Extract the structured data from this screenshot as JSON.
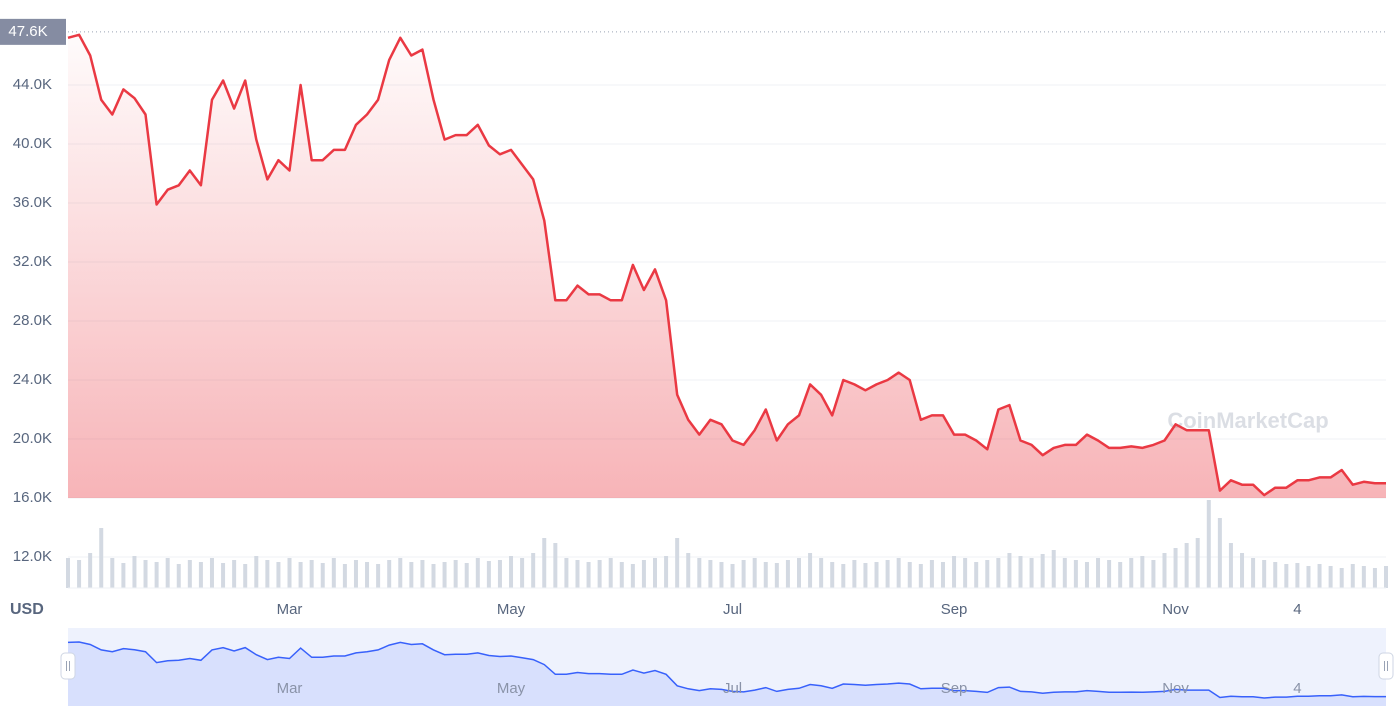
{
  "chart_data": {
    "type": "line",
    "currency": "USD",
    "watermark": "CoinMarketCap",
    "color": "#ea3943",
    "grid": true,
    "ylim": [
      9900,
      48540
    ],
    "yticks": [
      {
        "value": 12000,
        "label": "12.0K"
      },
      {
        "value": 16000,
        "label": "16.0K"
      },
      {
        "value": 20000,
        "label": "20.0K"
      },
      {
        "value": 24000,
        "label": "24.0K"
      },
      {
        "value": 28000,
        "label": "28.0K"
      },
      {
        "value": 32000,
        "label": "32.0K"
      },
      {
        "value": 36000,
        "label": "36.0K"
      },
      {
        "value": 40000,
        "label": "40.0K"
      },
      {
        "value": 44000,
        "label": "44.0K"
      }
    ],
    "max_marker": {
      "value": 47600,
      "label": "47.6K"
    },
    "categories": [
      null,
      null,
      null,
      null,
      null,
      null,
      null,
      null,
      null,
      null,
      null,
      null,
      null,
      null,
      null,
      null,
      null,
      null,
      null,
      null,
      "Mar",
      null,
      null,
      null,
      null,
      null,
      null,
      null,
      null,
      null,
      null,
      null,
      null,
      null,
      null,
      null,
      null,
      null,
      null,
      null,
      "May",
      null,
      null,
      null,
      null,
      null,
      null,
      null,
      null,
      null,
      null,
      null,
      null,
      null,
      null,
      null,
      null,
      null,
      null,
      null,
      "Jul",
      null,
      null,
      null,
      null,
      null,
      null,
      null,
      null,
      null,
      null,
      null,
      null,
      null,
      null,
      null,
      null,
      null,
      null,
      null,
      "Sep",
      null,
      null,
      null,
      null,
      null,
      null,
      null,
      null,
      null,
      null,
      null,
      null,
      null,
      null,
      null,
      null,
      null,
      null,
      null,
      "Nov",
      null,
      null,
      null,
      null,
      null,
      null,
      null,
      null,
      null,
      null,
      "4",
      null,
      null,
      null,
      null,
      null,
      null,
      null,
      null
    ],
    "values": [
      47200,
      47400,
      46000,
      43000,
      42000,
      43700,
      43100,
      42000,
      35900,
      36900,
      37200,
      38200,
      37200,
      43000,
      44300,
      42400,
      44300,
      40300,
      37600,
      38900,
      38200,
      44000,
      38900,
      38900,
      39600,
      39600,
      41300,
      42000,
      43000,
      45700,
      47200,
      46000,
      46400,
      43000,
      40300,
      40600,
      40600,
      41300,
      39900,
      39300,
      39600,
      38600,
      37600,
      34800,
      29400,
      29400,
      30400,
      29800,
      29800,
      29400,
      29400,
      31800,
      30100,
      31500,
      29400,
      23000,
      21300,
      20300,
      21300,
      21000,
      19900,
      19600,
      20600,
      22000,
      19900,
      21000,
      21600,
      23700,
      23000,
      21600,
      24000,
      23700,
      23300,
      23700,
      24000,
      24500,
      24000,
      21300,
      21600,
      21600,
      20300,
      20300,
      19900,
      19300,
      22000,
      22300,
      19900,
      19600,
      18900,
      19400,
      19600,
      19600,
      20300,
      19900,
      19400,
      19400,
      19500,
      19400,
      19600,
      19900,
      21000,
      20600,
      20600,
      20600,
      16500,
      17200,
      16900,
      16900,
      16200,
      16700,
      16700,
      17200,
      17200,
      17400,
      17400,
      17900,
      16900,
      17100,
      17000,
      17000
    ],
    "volume": [
      30,
      28,
      35,
      60,
      30,
      25,
      32,
      28,
      26,
      30,
      24,
      28,
      26,
      30,
      25,
      28,
      24,
      32,
      28,
      26,
      30,
      26,
      28,
      25,
      30,
      24,
      28,
      26,
      24,
      28,
      30,
      26,
      28,
      24,
      26,
      28,
      25,
      30,
      27,
      28,
      32,
      30,
      35,
      50,
      45,
      30,
      28,
      26,
      28,
      30,
      26,
      24,
      28,
      30,
      32,
      50,
      35,
      30,
      28,
      26,
      24,
      28,
      30,
      26,
      25,
      28,
      30,
      35,
      30,
      26,
      24,
      28,
      25,
      26,
      28,
      30,
      26,
      24,
      28,
      26,
      32,
      30,
      26,
      28,
      30,
      35,
      32,
      30,
      34,
      38,
      30,
      28,
      26,
      30,
      28,
      26,
      30,
      32,
      28,
      35,
      40,
      45,
      50,
      88,
      70,
      45,
      35,
      30,
      28,
      26,
      24,
      25,
      22,
      24,
      22,
      20,
      24,
      22,
      20,
      22
    ],
    "volume_color": "#d3d9e2",
    "navigator_color": "#3861fb"
  }
}
